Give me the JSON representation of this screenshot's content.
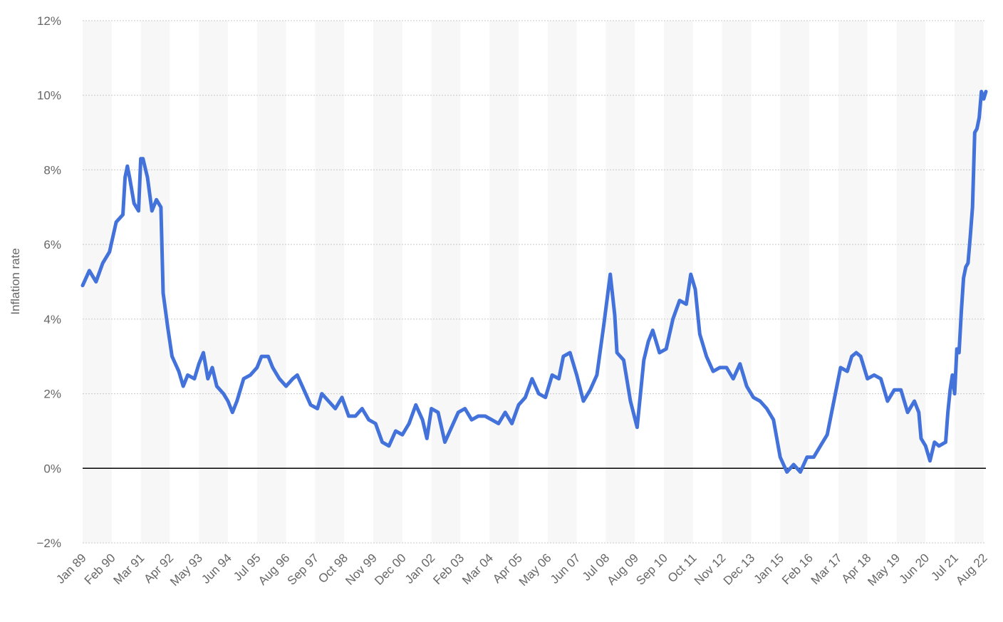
{
  "chart_data": {
    "type": "line",
    "title": "",
    "xlabel": "",
    "ylabel": "Inflation rate",
    "y_ticks": [
      "12%",
      "10%",
      "8%",
      "6%",
      "4%",
      "2%",
      "0%",
      "−2%"
    ],
    "y_tick_values": [
      12,
      10,
      8,
      6,
      4,
      2,
      0,
      -2
    ],
    "ylim": [
      -2,
      12
    ],
    "x_ticks": [
      "Jan 89",
      "Feb 90",
      "Mar 91",
      "Apr 92",
      "May 93",
      "Jun 94",
      "Jul 95",
      "Aug 96",
      "Sep 97",
      "Oct 98",
      "Nov 99",
      "Dec 00",
      "Jan 02",
      "Feb 03",
      "Mar 04",
      "Apr 05",
      "May 06",
      "Jun 07",
      "Jul 08",
      "Aug 09",
      "Sep 10",
      "Oct 11",
      "Nov 12",
      "Dec 13",
      "Jan 15",
      "Feb 16",
      "Mar 17",
      "Apr 18",
      "May 19",
      "Jun 20",
      "Jul 21",
      "Aug 22"
    ],
    "x_range": [
      "Jan 89",
      "Aug 22"
    ],
    "grid": true,
    "zero_line": true,
    "alternating_bands": true,
    "legend": "none",
    "colors": {
      "line": "#4472db",
      "grid": "#c8c8c8",
      "band": "#f7f7f7",
      "zero_line": "#000000",
      "tick_text": "#666666"
    },
    "series": [
      {
        "values": [
          {
            "x": "Jan 89",
            "y": 4.9
          },
          {
            "x": "Apr 89",
            "y": 5.3
          },
          {
            "x": "Jul 89",
            "y": 5.0
          },
          {
            "x": "Oct 89",
            "y": 5.5
          },
          {
            "x": "Jan 90",
            "y": 5.8
          },
          {
            "x": "Apr 90",
            "y": 6.6
          },
          {
            "x": "Jul 90",
            "y": 6.8
          },
          {
            "x": "Aug 90",
            "y": 7.8
          },
          {
            "x": "Sep 90",
            "y": 8.1
          },
          {
            "x": "Oct 90",
            "y": 7.8
          },
          {
            "x": "Dec 90",
            "y": 7.1
          },
          {
            "x": "Feb 91",
            "y": 6.9
          },
          {
            "x": "Mar 91",
            "y": 8.3
          },
          {
            "x": "Apr 91",
            "y": 8.3
          },
          {
            "x": "Jun 91",
            "y": 7.8
          },
          {
            "x": "Aug 91",
            "y": 6.9
          },
          {
            "x": "Oct 91",
            "y": 7.2
          },
          {
            "x": "Dec 91",
            "y": 7.0
          },
          {
            "x": "Jan 92",
            "y": 4.7
          },
          {
            "x": "Mar 92",
            "y": 3.8
          },
          {
            "x": "May 92",
            "y": 3.0
          },
          {
            "x": "Aug 92",
            "y": 2.6
          },
          {
            "x": "Oct 92",
            "y": 2.2
          },
          {
            "x": "Dec 92",
            "y": 2.5
          },
          {
            "x": "Mar 93",
            "y": 2.4
          },
          {
            "x": "May 93",
            "y": 2.8
          },
          {
            "x": "Jul 93",
            "y": 3.1
          },
          {
            "x": "Sep 93",
            "y": 2.4
          },
          {
            "x": "Nov 93",
            "y": 2.7
          },
          {
            "x": "Jan 94",
            "y": 2.2
          },
          {
            "x": "Apr 94",
            "y": 2.0
          },
          {
            "x": "Jun 94",
            "y": 1.8
          },
          {
            "x": "Aug 94",
            "y": 1.5
          },
          {
            "x": "Oct 94",
            "y": 1.8
          },
          {
            "x": "Jan 95",
            "y": 2.4
          },
          {
            "x": "Apr 95",
            "y": 2.5
          },
          {
            "x": "Jul 95",
            "y": 2.7
          },
          {
            "x": "Sep 95",
            "y": 3.0
          },
          {
            "x": "Dec 95",
            "y": 3.0
          },
          {
            "x": "Feb 96",
            "y": 2.7
          },
          {
            "x": "May 96",
            "y": 2.4
          },
          {
            "x": "Aug 96",
            "y": 2.2
          },
          {
            "x": "Nov 96",
            "y": 2.4
          },
          {
            "x": "Jan 97",
            "y": 2.5
          },
          {
            "x": "Apr 97",
            "y": 2.1
          },
          {
            "x": "Jul 97",
            "y": 1.7
          },
          {
            "x": "Oct 97",
            "y": 1.6
          },
          {
            "x": "Dec 97",
            "y": 2.0
          },
          {
            "x": "Mar 98",
            "y": 1.8
          },
          {
            "x": "Jun 98",
            "y": 1.6
          },
          {
            "x": "Sep 98",
            "y": 1.9
          },
          {
            "x": "Dec 98",
            "y": 1.4
          },
          {
            "x": "Mar 99",
            "y": 1.4
          },
          {
            "x": "Jun 99",
            "y": 1.6
          },
          {
            "x": "Sep 99",
            "y": 1.3
          },
          {
            "x": "Dec 99",
            "y": 1.2
          },
          {
            "x": "Mar 00",
            "y": 0.7
          },
          {
            "x": "Jun 00",
            "y": 0.6
          },
          {
            "x": "Sep 00",
            "y": 1.0
          },
          {
            "x": "Dec 00",
            "y": 0.9
          },
          {
            "x": "Mar 01",
            "y": 1.2
          },
          {
            "x": "Jun 01",
            "y": 1.7
          },
          {
            "x": "Sep 01",
            "y": 1.3
          },
          {
            "x": "Nov 01",
            "y": 0.8
          },
          {
            "x": "Jan 02",
            "y": 1.6
          },
          {
            "x": "Apr 02",
            "y": 1.5
          },
          {
            "x": "Jul 02",
            "y": 0.7
          },
          {
            "x": "Oct 02",
            "y": 1.1
          },
          {
            "x": "Jan 03",
            "y": 1.5
          },
          {
            "x": "Apr 03",
            "y": 1.6
          },
          {
            "x": "Jul 03",
            "y": 1.3
          },
          {
            "x": "Oct 03",
            "y": 1.4
          },
          {
            "x": "Jan 04",
            "y": 1.4
          },
          {
            "x": "Apr 04",
            "y": 1.3
          },
          {
            "x": "Jul 04",
            "y": 1.2
          },
          {
            "x": "Oct 04",
            "y": 1.5
          },
          {
            "x": "Jan 05",
            "y": 1.2
          },
          {
            "x": "Apr 05",
            "y": 1.7
          },
          {
            "x": "Jul 05",
            "y": 1.9
          },
          {
            "x": "Oct 05",
            "y": 2.4
          },
          {
            "x": "Jan 06",
            "y": 2.0
          },
          {
            "x": "Apr 06",
            "y": 1.9
          },
          {
            "x": "Jul 06",
            "y": 2.5
          },
          {
            "x": "Oct 06",
            "y": 2.4
          },
          {
            "x": "Dec 06",
            "y": 3.0
          },
          {
            "x": "Mar 07",
            "y": 3.1
          },
          {
            "x": "Jun 07",
            "y": 2.5
          },
          {
            "x": "Sep 07",
            "y": 1.8
          },
          {
            "x": "Dec 07",
            "y": 2.1
          },
          {
            "x": "Mar 08",
            "y": 2.5
          },
          {
            "x": "Jun 08",
            "y": 3.8
          },
          {
            "x": "Sep 08",
            "y": 5.2
          },
          {
            "x": "Nov 08",
            "y": 4.1
          },
          {
            "x": "Dec 08",
            "y": 3.1
          },
          {
            "x": "Mar 09",
            "y": 2.9
          },
          {
            "x": "Jun 09",
            "y": 1.8
          },
          {
            "x": "Sep 09",
            "y": 1.1
          },
          {
            "x": "Dec 09",
            "y": 2.9
          },
          {
            "x": "Feb 10",
            "y": 3.4
          },
          {
            "x": "Apr 10",
            "y": 3.7
          },
          {
            "x": "Jul 10",
            "y": 3.1
          },
          {
            "x": "Oct 10",
            "y": 3.2
          },
          {
            "x": "Jan 11",
            "y": 4.0
          },
          {
            "x": "Apr 11",
            "y": 4.5
          },
          {
            "x": "Jul 11",
            "y": 4.4
          },
          {
            "x": "Sep 11",
            "y": 5.2
          },
          {
            "x": "Nov 11",
            "y": 4.8
          },
          {
            "x": "Jan 12",
            "y": 3.6
          },
          {
            "x": "Apr 12",
            "y": 3.0
          },
          {
            "x": "Jul 12",
            "y": 2.6
          },
          {
            "x": "Oct 12",
            "y": 2.7
          },
          {
            "x": "Jan 13",
            "y": 2.7
          },
          {
            "x": "Apr 13",
            "y": 2.4
          },
          {
            "x": "Jul 13",
            "y": 2.8
          },
          {
            "x": "Oct 13",
            "y": 2.2
          },
          {
            "x": "Jan 14",
            "y": 1.9
          },
          {
            "x": "Apr 14",
            "y": 1.8
          },
          {
            "x": "Jul 14",
            "y": 1.6
          },
          {
            "x": "Oct 14",
            "y": 1.3
          },
          {
            "x": "Jan 15",
            "y": 0.3
          },
          {
            "x": "Apr 15",
            "y": -0.1
          },
          {
            "x": "Jul 15",
            "y": 0.1
          },
          {
            "x": "Oct 15",
            "y": -0.1
          },
          {
            "x": "Jan 16",
            "y": 0.3
          },
          {
            "x": "Apr 16",
            "y": 0.3
          },
          {
            "x": "Jul 16",
            "y": 0.6
          },
          {
            "x": "Oct 16",
            "y": 0.9
          },
          {
            "x": "Jan 17",
            "y": 1.8
          },
          {
            "x": "Apr 17",
            "y": 2.7
          },
          {
            "x": "Jul 17",
            "y": 2.6
          },
          {
            "x": "Sep 17",
            "y": 3.0
          },
          {
            "x": "Nov 17",
            "y": 3.1
          },
          {
            "x": "Jan 18",
            "y": 3.0
          },
          {
            "x": "Apr 18",
            "y": 2.4
          },
          {
            "x": "Jul 18",
            "y": 2.5
          },
          {
            "x": "Oct 18",
            "y": 2.4
          },
          {
            "x": "Jan 19",
            "y": 1.8
          },
          {
            "x": "Apr 19",
            "y": 2.1
          },
          {
            "x": "Jul 19",
            "y": 2.1
          },
          {
            "x": "Oct 19",
            "y": 1.5
          },
          {
            "x": "Jan 20",
            "y": 1.8
          },
          {
            "x": "Mar 20",
            "y": 1.5
          },
          {
            "x": "Apr 20",
            "y": 0.8
          },
          {
            "x": "Jun 20",
            "y": 0.6
          },
          {
            "x": "Aug 20",
            "y": 0.2
          },
          {
            "x": "Oct 20",
            "y": 0.7
          },
          {
            "x": "Dec 20",
            "y": 0.6
          },
          {
            "x": "Mar 21",
            "y": 0.7
          },
          {
            "x": "Apr 21",
            "y": 1.5
          },
          {
            "x": "May 21",
            "y": 2.1
          },
          {
            "x": "Jun 21",
            "y": 2.5
          },
          {
            "x": "Jul 21",
            "y": 2.0
          },
          {
            "x": "Aug 21",
            "y": 3.2
          },
          {
            "x": "Sep 21",
            "y": 3.1
          },
          {
            "x": "Oct 21",
            "y": 4.2
          },
          {
            "x": "Nov 21",
            "y": 5.1
          },
          {
            "x": "Dec 21",
            "y": 5.4
          },
          {
            "x": "Jan 22",
            "y": 5.5
          },
          {
            "x": "Feb 22",
            "y": 6.2
          },
          {
            "x": "Mar 22",
            "y": 7.0
          },
          {
            "x": "Apr 22",
            "y": 9.0
          },
          {
            "x": "May 22",
            "y": 9.1
          },
          {
            "x": "Jun 22",
            "y": 9.4
          },
          {
            "x": "Jul 22",
            "y": 10.1
          },
          {
            "x": "Aug 22",
            "y": 9.9
          },
          {
            "x": "Sep 22",
            "y": 10.1
          }
        ]
      }
    ]
  }
}
